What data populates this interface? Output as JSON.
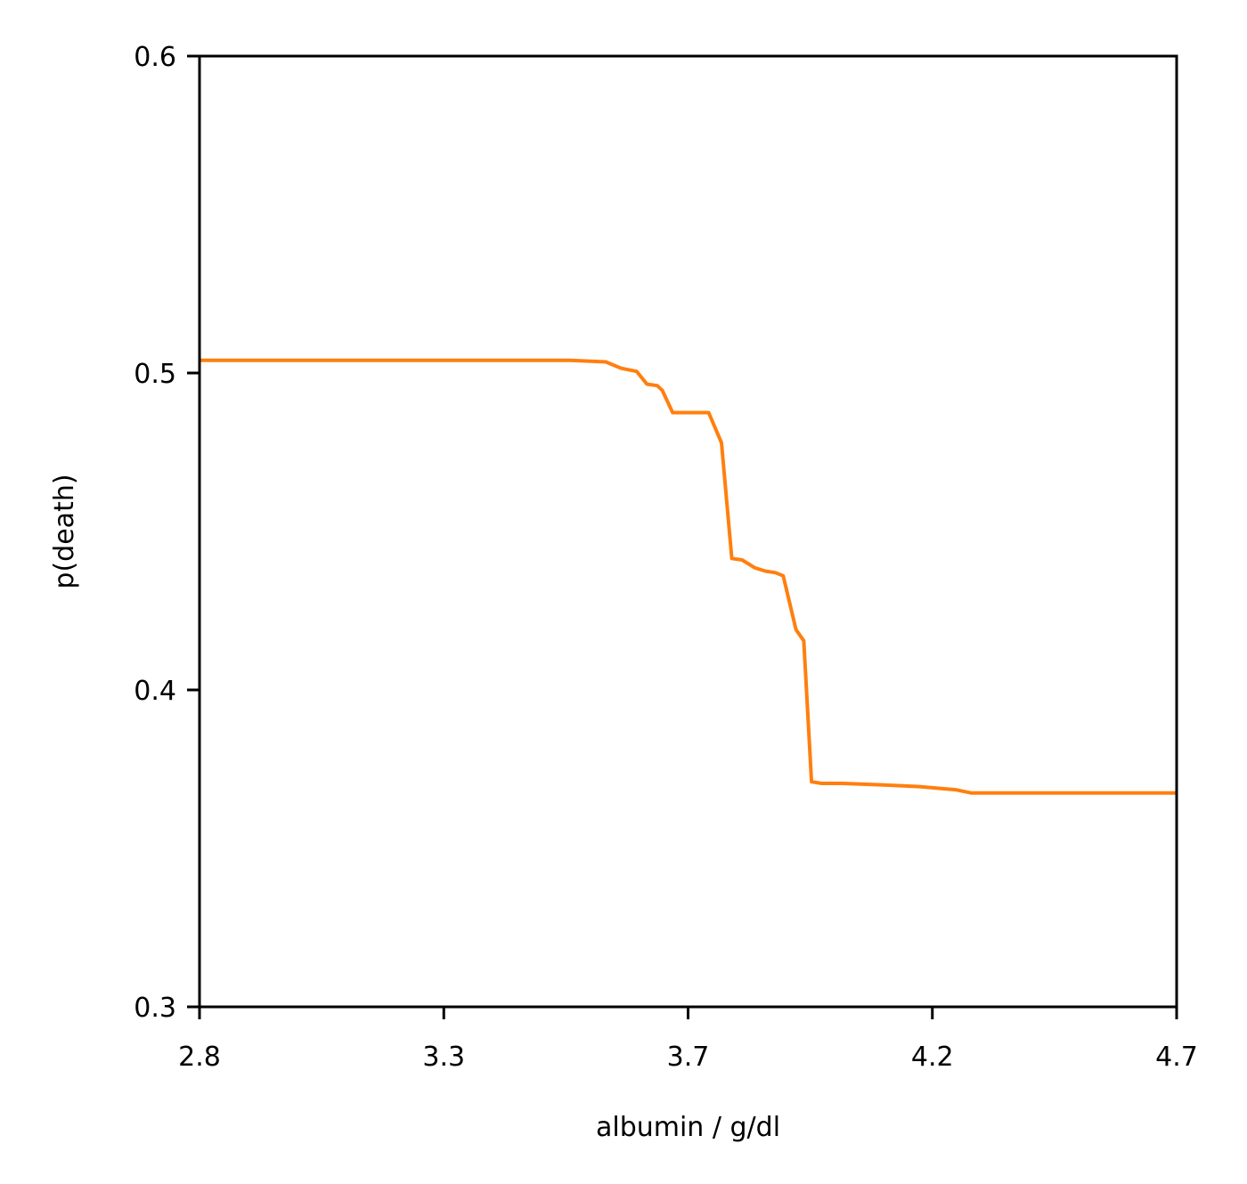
{
  "chart_data": {
    "type": "line",
    "title": "",
    "xlabel": "albumin / g/dl",
    "ylabel": "p(death)",
    "xlim": [
      2.8,
      4.7
    ],
    "ylim": [
      0.3,
      0.6
    ],
    "x_ticks": [
      2.8,
      3.275,
      3.75,
      4.225,
      4.7
    ],
    "x_tick_labels": [
      "2.8",
      "3.3",
      "3.7",
      "4.2",
      "4.7"
    ],
    "y_ticks": [
      0.3,
      0.4,
      0.5,
      0.6
    ],
    "y_tick_labels": [
      "0.3",
      "0.4",
      "0.5",
      "0.6"
    ],
    "grid": false,
    "legend": "none",
    "series": [
      {
        "color": "#ff7f0e",
        "x": [
          2.8,
          3.3,
          3.42,
          3.52,
          3.59,
          3.62,
          3.65,
          3.67,
          3.69,
          3.7,
          3.72,
          3.74,
          3.79,
          3.815,
          3.835,
          3.855,
          3.88,
          3.9,
          3.92,
          3.935,
          3.96,
          3.975,
          3.99,
          4.01,
          4.05,
          4.13,
          4.2,
          4.27,
          4.3,
          4.4,
          4.5,
          4.6,
          4.7
        ],
        "y": [
          0.504,
          0.504,
          0.504,
          0.504,
          0.5035,
          0.5015,
          0.5005,
          0.4965,
          0.496,
          0.4945,
          0.4875,
          0.4875,
          0.4875,
          0.478,
          0.4415,
          0.441,
          0.4385,
          0.4375,
          0.437,
          0.436,
          0.419,
          0.4155,
          0.371,
          0.3705,
          0.3705,
          0.37,
          0.3695,
          0.3685,
          0.3675,
          0.3675,
          0.3675,
          0.3675,
          0.3675
        ]
      }
    ]
  }
}
